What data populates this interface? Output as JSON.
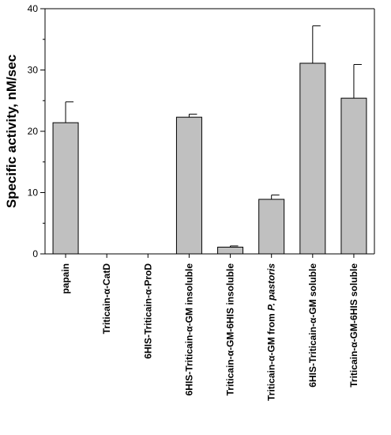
{
  "chart_data": {
    "type": "bar",
    "title": "",
    "xlabel": "",
    "ylabel": "Specific activity, nM/sec",
    "ylim": [
      0,
      40
    ],
    "yticks": [
      0,
      10,
      20,
      30,
      40
    ],
    "categories": [
      "papain",
      "Triticain-α-CatD",
      "6HIS-Triticain-α-ProD",
      "6HIS-Triticain-α-GM insoluble",
      "Triticain-α-GM-6HIS insoluble",
      "Triticain-α-GM from P. pastoris",
      "6HIS-Triticain-α-GM soluble",
      "Triticain-α-GM-6HIS soluble"
    ],
    "values": [
      21.4,
      0,
      0,
      22.3,
      1.1,
      8.9,
      31.1,
      25.4
    ],
    "errors": [
      3.4,
      0,
      0,
      0.5,
      0.2,
      0.7,
      6.1,
      5.5
    ],
    "bar_color": "#c0c0c0",
    "grid": false,
    "legend": "none"
  }
}
